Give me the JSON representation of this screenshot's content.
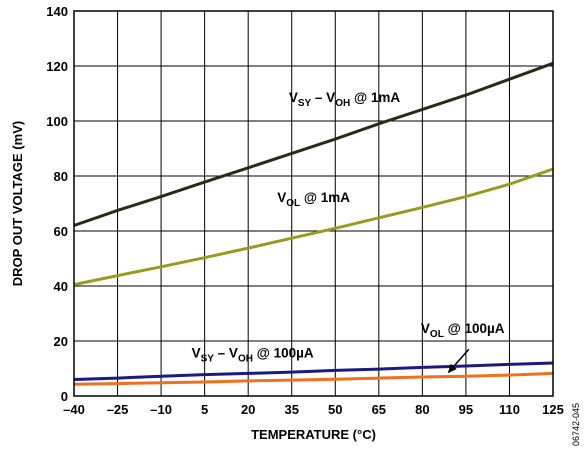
{
  "chart_data": {
    "type": "line",
    "xlabel": "TEMPERATURE (°C)",
    "ylabel": "DROP OUT VOLTAGE (mV)",
    "xlim": [
      -40,
      125
    ],
    "ylim": [
      0,
      140
    ],
    "xticks": [
      -40,
      -25,
      -10,
      5,
      20,
      35,
      50,
      65,
      80,
      95,
      110,
      125
    ],
    "xtick_labels": [
      "–40",
      "–25",
      "–10",
      "5",
      "20",
      "35",
      "50",
      "65",
      "80",
      "95",
      "110",
      "125"
    ],
    "yticks": [
      0,
      20,
      40,
      60,
      80,
      100,
      120,
      140
    ],
    "ytick_labels": [
      "0",
      "20",
      "40",
      "60",
      "80",
      "100",
      "120",
      "140"
    ],
    "grid": true,
    "figure_id": "06742-045",
    "series": [
      {
        "name": "VSY – VOH @ 1mA",
        "color": "#2b2a12",
        "x": [
          -40,
          -25,
          -10,
          5,
          20,
          35,
          50,
          65,
          80,
          95,
          110,
          125
        ],
        "y": [
          62,
          67.5,
          72.5,
          77.8,
          83,
          88.2,
          93.4,
          99,
          104.2,
          109.4,
          115.2,
          121
        ]
      },
      {
        "name": "VOL @ 1mA",
        "color": "#9a9a1e",
        "x": [
          -40,
          -25,
          -10,
          5,
          20,
          35,
          50,
          65,
          80,
          95,
          110,
          125
        ],
        "y": [
          40.5,
          43.8,
          47,
          50.3,
          53.8,
          57.4,
          61,
          64.8,
          68.6,
          72.5,
          77,
          82.5
        ]
      },
      {
        "name": "VSY – VOH @ 100µA",
        "color": "#1a1a80",
        "x": [
          -40,
          -25,
          -10,
          5,
          20,
          35,
          50,
          65,
          80,
          95,
          110,
          125
        ],
        "y": [
          6,
          6.5,
          7.2,
          7.8,
          8.2,
          8.7,
          9.3,
          9.8,
          10.4,
          10.9,
          11.5,
          12
        ]
      },
      {
        "name": "VOL @ 100µA",
        "color": "#f07020",
        "x": [
          -40,
          -25,
          -10,
          5,
          20,
          35,
          50,
          65,
          80,
          95,
          110,
          125
        ],
        "y": [
          4.3,
          4.5,
          4.8,
          5.1,
          5.5,
          5.8,
          6.1,
          6.5,
          6.9,
          7.2,
          7.6,
          8.2
        ]
      }
    ],
    "annotations": [
      {
        "main": "V",
        "sub1": "SY",
        "mid": " – V",
        "sub2": "OH",
        "rest": " @ 1mA",
        "x": 34,
        "y": 107
      },
      {
        "main": "V",
        "sub1": "OL",
        "mid": "",
        "sub2": "",
        "rest": " @ 1mA",
        "x": 30,
        "y": 70.5
      },
      {
        "main": "V",
        "sub1": "SY",
        "mid": " – V",
        "sub2": "OH",
        "rest": " @ 100µA",
        "x": 0.5,
        "y": 14
      },
      {
        "main": "V",
        "sub1": "OL",
        "mid": "",
        "sub2": "",
        "rest": " @ 100µA",
        "x": 79.5,
        "y": 23
      }
    ],
    "arrow": {
      "from": [
        96,
        17
      ],
      "to": [
        89,
        8.6
      ]
    }
  }
}
